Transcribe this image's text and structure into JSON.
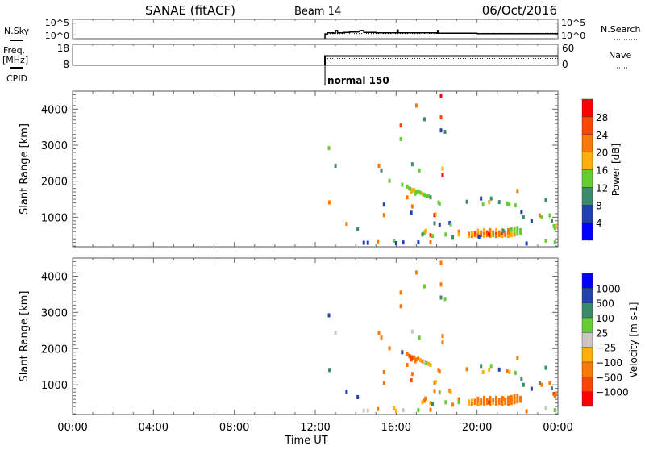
{
  "header": {
    "station": "SANAE (fitACF)",
    "beam": "Beam 14",
    "date": "06/Oct/2016",
    "nsky_label": "N.Sky",
    "nsearch_label": "N.Search",
    "freq_label_1": "Freq.",
    "freq_label_2": "[MHz]",
    "nave_label": "Nave",
    "cpid_label": "CPID",
    "noise_ticks_left": [
      "10^5",
      "10^0"
    ],
    "noise_ticks_right": [
      "10^5",
      "10^0"
    ],
    "freq_ticks": [
      "18",
      "8"
    ],
    "nave_ticks": [
      "60",
      "0"
    ],
    "cpid_text": "normal 150",
    "start_hour": 12.48,
    "freq_mhz": 12.4,
    "nave": 20,
    "noise_sky_log": [
      [
        12.48,
        1.2
      ],
      [
        12.6,
        1.5
      ],
      [
        12.9,
        1.4
      ],
      [
        13.0,
        2.1
      ],
      [
        13.1,
        1.5
      ],
      [
        13.4,
        1.6
      ],
      [
        13.7,
        1.7
      ],
      [
        14.1,
        1.8
      ],
      [
        14.2,
        2.1
      ],
      [
        14.4,
        1.6
      ],
      [
        15.0,
        1.5
      ],
      [
        16.0,
        1.5
      ],
      [
        16.05,
        2.2
      ],
      [
        16.1,
        1.5
      ],
      [
        17.0,
        1.5
      ],
      [
        18.0,
        1.4
      ],
      [
        18.05,
        2.1
      ],
      [
        18.1,
        1.4
      ],
      [
        20.0,
        1.3
      ],
      [
        21.0,
        1.3
      ],
      [
        22.0,
        1.3
      ],
      [
        23.0,
        1.3
      ],
      [
        24.0,
        1.3
      ]
    ],
    "noise_search_log": [
      [
        12.48,
        1.3
      ],
      [
        24.0,
        1.4
      ]
    ]
  },
  "chart_data": [
    {
      "type": "scatter",
      "title": "Power",
      "ylabel": "Slant Range [km]",
      "xlabel": "Time UT",
      "xlim": [
        0,
        24
      ],
      "ylim": [
        180,
        4500
      ],
      "yticks": [
        "1000",
        "2000",
        "3000",
        "4000"
      ],
      "xticks": [
        "00:00",
        "04:00",
        "08:00",
        "12:00",
        "16:00",
        "20:00",
        "00:00"
      ],
      "colorbar": {
        "label": "Power [dB]",
        "ticks": [
          "28",
          "24",
          "20",
          "16",
          "12",
          "8",
          "4"
        ],
        "colors": [
          "#ff0000",
          "#ff4400",
          "#ff7700",
          "#ffb000",
          "#66cc33",
          "#3c8a6c",
          "#2040b0",
          "#0000ff"
        ]
      }
    },
    {
      "type": "scatter",
      "title": "Velocity",
      "ylabel": "Slant Range [km]",
      "xlabel": "Time UT",
      "xlim": [
        0,
        24
      ],
      "ylim": [
        180,
        4500
      ],
      "yticks": [
        "1000",
        "2000",
        "3000",
        "4000"
      ],
      "xticks": [
        "00:00",
        "04:00",
        "08:00",
        "12:00",
        "16:00",
        "20:00",
        "00:00"
      ],
      "colorbar": {
        "label": "Velocity [m s-1]",
        "ticks": [
          "1000",
          "500",
          "100",
          "25",
          "−25",
          "−100",
          "−500",
          "−1000"
        ],
        "colors": [
          "#0000ff",
          "#2244aa",
          "#3a8a6a",
          "#66cc33",
          "#c8c8c0",
          "#ffb000",
          "#ff7700",
          "#ff4400",
          "#ff0000"
        ]
      }
    }
  ],
  "points_note_columns": [
    "hour",
    "range_km",
    "power_dB",
    "velocity_ms"
  ],
  "points": [
    [
      18.22,
      4370,
      30,
      -300
    ],
    [
      18.22,
      3770,
      26,
      -200
    ],
    [
      17.0,
      4100,
      22,
      -150
    ],
    [
      17.4,
      3720,
      10,
      80
    ],
    [
      16.23,
      3545,
      24,
      -300
    ],
    [
      16.23,
      3170,
      12,
      -150
    ],
    [
      18.22,
      3410,
      6,
      400
    ],
    [
      18.42,
      3370,
      10,
      60
    ],
    [
      12.68,
      2920,
      14,
      600
    ],
    [
      13.0,
      2430,
      8,
      0
    ],
    [
      15.15,
      2430,
      20,
      -200
    ],
    [
      15.27,
      2300,
      10,
      -150
    ],
    [
      16.8,
      2470,
      10,
      0
    ],
    [
      17.15,
      2300,
      14,
      80
    ],
    [
      15.67,
      2010,
      14,
      -200
    ],
    [
      16.3,
      1900,
      12,
      600
    ],
    [
      16.55,
      1850,
      12,
      -400
    ],
    [
      16.65,
      1800,
      14,
      -500
    ],
    [
      16.7,
      1780,
      14,
      -600
    ],
    [
      16.8,
      1740,
      15,
      -550
    ],
    [
      16.85,
      1760,
      16,
      -700
    ],
    [
      16.9,
      1750,
      16,
      -500
    ],
    [
      17.0,
      1700,
      13,
      -400
    ],
    [
      17.1,
      1720,
      15,
      -200
    ],
    [
      17.2,
      1680,
      14,
      -100
    ],
    [
      17.3,
      1650,
      16,
      -150
    ],
    [
      17.4,
      1620,
      12,
      20
    ],
    [
      17.5,
      1600,
      13,
      60
    ],
    [
      17.6,
      1580,
      14,
      -80
    ],
    [
      17.7,
      1550,
      10,
      -50
    ],
    [
      16.75,
      1700,
      18,
      -600
    ],
    [
      16.95,
      1650,
      12,
      -300
    ],
    [
      16.55,
      1550,
      22,
      -200
    ],
    [
      18.3,
      2350,
      18,
      -200
    ],
    [
      18.3,
      2170,
      28,
      -150
    ],
    [
      12.7,
      1410,
      22,
      400
    ],
    [
      15.4,
      1350,
      6,
      -200
    ],
    [
      15.4,
      1060,
      22,
      -150
    ],
    [
      16.8,
      1300,
      20,
      -300
    ],
    [
      16.75,
      1125,
      6,
      -800
    ],
    [
      18.1,
      1410,
      14,
      -150
    ],
    [
      18.15,
      1370,
      12,
      -200
    ],
    [
      17.9,
      1060,
      28,
      -200
    ],
    [
      17.95,
      1080,
      16,
      -100
    ],
    [
      13.55,
      815,
      20,
      700
    ],
    [
      14.1,
      660,
      10,
      600
    ],
    [
      19.5,
      1430,
      8,
      -150
    ],
    [
      20.3,
      1350,
      12,
      -100
    ],
    [
      20.2,
      1520,
      6,
      400
    ],
    [
      20.7,
      1520,
      10,
      60
    ],
    [
      20.6,
      1420,
      16,
      -60
    ],
    [
      21.1,
      1420,
      8,
      600
    ],
    [
      21.5,
      1380,
      14,
      -150
    ],
    [
      21.6,
      1350,
      12,
      -100
    ],
    [
      21.9,
      1330,
      12,
      60
    ],
    [
      22.0,
      1730,
      20,
      -300
    ],
    [
      22.2,
      1150,
      6,
      200
    ],
    [
      22.3,
      1000,
      8,
      100
    ],
    [
      22.7,
      890,
      6,
      500
    ],
    [
      23.1,
      1050,
      20,
      200
    ],
    [
      23.2,
      1000,
      14,
      -200
    ],
    [
      23.4,
      1470,
      10,
      300
    ],
    [
      23.6,
      1050,
      14,
      -300
    ],
    [
      23.8,
      750,
      14,
      -600
    ],
    [
      23.85,
      700,
      12,
      -300
    ],
    [
      23.9,
      760,
      16,
      -500
    ],
    [
      23.7,
      900,
      10,
      400
    ],
    [
      14.4,
      290,
      6,
      0
    ],
    [
      14.6,
      290,
      6,
      0
    ],
    [
      15.1,
      330,
      22,
      -200
    ],
    [
      15.9,
      350,
      14,
      -100
    ],
    [
      16.0,
      280,
      4,
      -100
    ],
    [
      16.35,
      300,
      6,
      0
    ],
    [
      17.1,
      300,
      6,
      40
    ],
    [
      17.7,
      310,
      22,
      -150
    ],
    [
      22.45,
      270,
      6,
      -300
    ],
    [
      23.4,
      350,
      14,
      0
    ],
    [
      23.85,
      300,
      14,
      60
    ],
    [
      17.4,
      560,
      12,
      -150
    ],
    [
      17.3,
      520,
      10,
      -100
    ],
    [
      17.7,
      500,
      26,
      -100
    ],
    [
      17.8,
      480,
      14,
      200
    ],
    [
      17.45,
      620,
      18,
      -150
    ],
    [
      17.9,
      830,
      8,
      -300
    ],
    [
      18.15,
      790,
      6,
      60
    ],
    [
      18.45,
      520,
      14,
      60
    ],
    [
      18.65,
      840,
      6,
      -150
    ],
    [
      18.7,
      800,
      12,
      -100
    ],
    [
      18.8,
      450,
      10,
      -300
    ],
    [
      19.1,
      600,
      22,
      -150
    ],
    [
      19.1,
      520,
      16,
      60
    ],
    [
      19.6,
      480,
      18,
      -100
    ],
    [
      19.6,
      540,
      20,
      -80
    ],
    [
      19.75,
      480,
      22,
      -150
    ],
    [
      19.75,
      560,
      18,
      -100
    ],
    [
      19.9,
      500,
      20,
      -200
    ],
    [
      19.9,
      560,
      24,
      -150
    ],
    [
      20.05,
      480,
      20,
      -150
    ],
    [
      20.05,
      540,
      22,
      -300
    ],
    [
      20.05,
      620,
      18,
      -200
    ],
    [
      20.2,
      500,
      26,
      -300
    ],
    [
      20.2,
      580,
      20,
      -150
    ],
    [
      20.35,
      480,
      18,
      -200
    ],
    [
      20.35,
      560,
      22,
      -400
    ],
    [
      20.35,
      640,
      16,
      -150
    ],
    [
      20.5,
      500,
      20,
      -300
    ],
    [
      20.5,
      580,
      24,
      -200
    ],
    [
      20.65,
      480,
      22,
      -150
    ],
    [
      20.65,
      560,
      18,
      -300
    ],
    [
      20.65,
      640,
      20,
      -200
    ],
    [
      20.8,
      500,
      14,
      -100
    ],
    [
      20.8,
      580,
      22,
      -300
    ],
    [
      20.95,
      480,
      20,
      -200
    ],
    [
      20.95,
      560,
      26,
      -400
    ],
    [
      20.95,
      640,
      18,
      -150
    ],
    [
      21.1,
      500,
      20,
      -300
    ],
    [
      21.1,
      580,
      22,
      -200
    ],
    [
      21.25,
      480,
      18,
      -150
    ],
    [
      21.25,
      560,
      24,
      -300
    ],
    [
      21.25,
      640,
      16,
      -200
    ],
    [
      21.4,
      500,
      22,
      -250
    ],
    [
      21.4,
      580,
      20,
      -300
    ],
    [
      21.55,
      480,
      16,
      -150
    ],
    [
      21.55,
      560,
      22,
      -300
    ],
    [
      21.55,
      640,
      20,
      -200
    ],
    [
      21.7,
      500,
      18,
      -400
    ],
    [
      21.7,
      580,
      16,
      -300
    ],
    [
      21.7,
      660,
      14,
      -200
    ],
    [
      21.85,
      520,
      20,
      -300
    ],
    [
      21.85,
      600,
      14,
      -250
    ],
    [
      21.85,
      680,
      12,
      -300
    ],
    [
      22.0,
      540,
      12,
      -200
    ],
    [
      22.0,
      620,
      14,
      -300
    ],
    [
      22.0,
      700,
      12,
      -500
    ],
    [
      22.15,
      560,
      14,
      -300
    ],
    [
      22.15,
      640,
      12,
      -250
    ],
    [
      20.1,
      460,
      6,
      -100
    ],
    [
      21.3,
      620,
      8,
      -200
    ],
    [
      20.6,
      520,
      28,
      -600
    ]
  ]
}
